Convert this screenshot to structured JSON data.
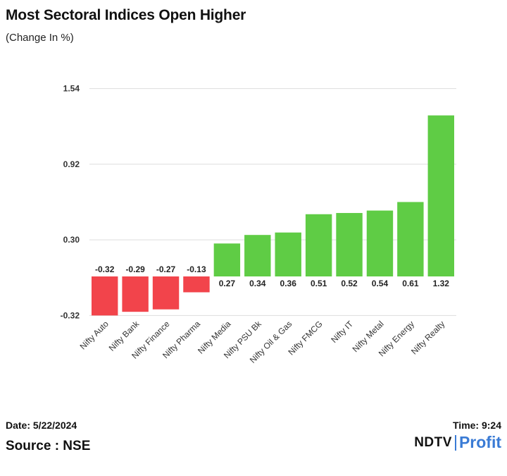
{
  "title": "Most Sectoral Indices Open Higher",
  "subtitle": "(Change In %)",
  "chart_data": {
    "type": "bar",
    "categories": [
      "Nifty Auto",
      "Nifty Bank",
      "Nifty Finance",
      "Nifty Pharma",
      "Nifty Media",
      "Nifty PSU Bk",
      "Nifty Oil & Gas",
      "Nifty FMCG",
      "Nifty IT",
      "Nifty Metal",
      "Nifty Energy",
      "Nifty Realty"
    ],
    "values": [
      -0.32,
      -0.29,
      -0.27,
      -0.13,
      0.27,
      0.34,
      0.36,
      0.51,
      0.52,
      0.54,
      0.61,
      1.32
    ],
    "value_labels": [
      "-0.32",
      "-0.29",
      "-0.27",
      "-0.13",
      "0.27",
      "0.34",
      "0.36",
      "0.51",
      "0.52",
      "0.54",
      "0.61",
      "1.32"
    ],
    "yticks": [
      -0.32,
      0.3,
      0.92,
      1.54
    ],
    "ytick_labels": [
      "-0.32",
      "0.30",
      "0.92",
      "1.54"
    ],
    "ylim": [
      -0.32,
      1.54
    ],
    "ylabel": "",
    "xlabel": "",
    "colors": {
      "negative": "#f2444b",
      "positive": "#5fcc45",
      "grid": "#dddddd"
    }
  },
  "footer": {
    "date": "Date: 5/22/2024",
    "time": "Time: 9:24",
    "source": "Source : NSE",
    "logo_primary": "NDTV",
    "logo_secondary": "Profit"
  }
}
